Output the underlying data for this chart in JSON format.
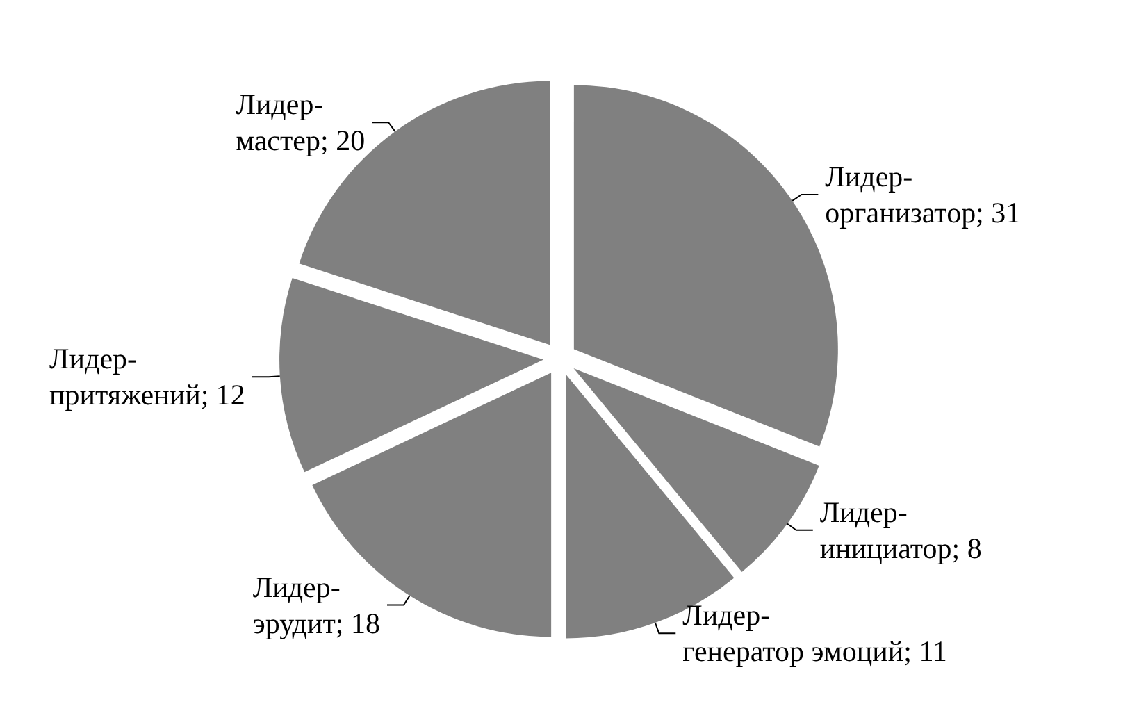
{
  "chart_data": {
    "type": "pie",
    "categories": [
      "Лидер-организатор",
      "Лидер-инициатор",
      "Лидер-генератор эмоций",
      "Лидер-эрудит",
      "Лидер-притяжений",
      "Лидер-мастер"
    ],
    "values": [
      31,
      8,
      11,
      18,
      12,
      20
    ],
    "colors": [
      "#808080",
      "#808080",
      "#808080",
      "#808080",
      "#808080",
      "#808080"
    ],
    "value_labels": [
      "; 31",
      "; 8",
      "; 11",
      "; 18",
      "; 12",
      "; 20"
    ]
  }
}
